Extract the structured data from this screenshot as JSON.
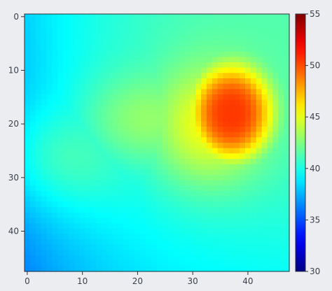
{
  "chart_data": {
    "type": "heatmap",
    "title": "",
    "xlabel": "",
    "ylabel": "",
    "colormap": "jet",
    "grid": false,
    "x_range": [
      0,
      47
    ],
    "y_range": [
      0,
      47
    ],
    "y_axis_inverted": true,
    "x_ticks": [
      0,
      10,
      20,
      30,
      40
    ],
    "y_ticks": [
      0,
      10,
      20,
      30,
      40
    ],
    "x_tick_labels": [
      "0",
      "10",
      "20",
      "30",
      "40"
    ],
    "y_tick_labels": [
      "0",
      "10",
      "20",
      "30",
      "40"
    ],
    "colorbar": {
      "min": 30,
      "max": 55,
      "ticks": [
        30,
        35,
        40,
        45,
        50,
        55
      ],
      "tick_labels": [
        "30",
        "35",
        "40",
        "45",
        "50",
        "55"
      ],
      "placement": "right"
    },
    "field": {
      "grid_size": 48,
      "background": {
        "base": 40.5,
        "left_edge_delta": -2.5,
        "right_edge_delta": 1.0,
        "top_delta": 0.3,
        "bottom_delta": -1.5
      },
      "hotspots": [
        {
          "center_x": 37,
          "center_y": 18,
          "peak": 50.5,
          "radius_x": 7.5,
          "radius_y": 9.0,
          "shape": "plateau"
        },
        {
          "center_x": 33,
          "center_y": 20,
          "peak": 45.5,
          "radius_x": 10.5,
          "radius_y": 11.5,
          "shape": "halo"
        },
        {
          "center_x": 22,
          "center_y": 19,
          "peak": 43.0,
          "radius_x": 12.0,
          "radius_y": 9.0,
          "shape": "halo"
        },
        {
          "center_x": 9,
          "center_y": 26,
          "peak": 41.0,
          "radius_x": 12.0,
          "radius_y": 10.0,
          "shape": "halo"
        }
      ]
    }
  }
}
